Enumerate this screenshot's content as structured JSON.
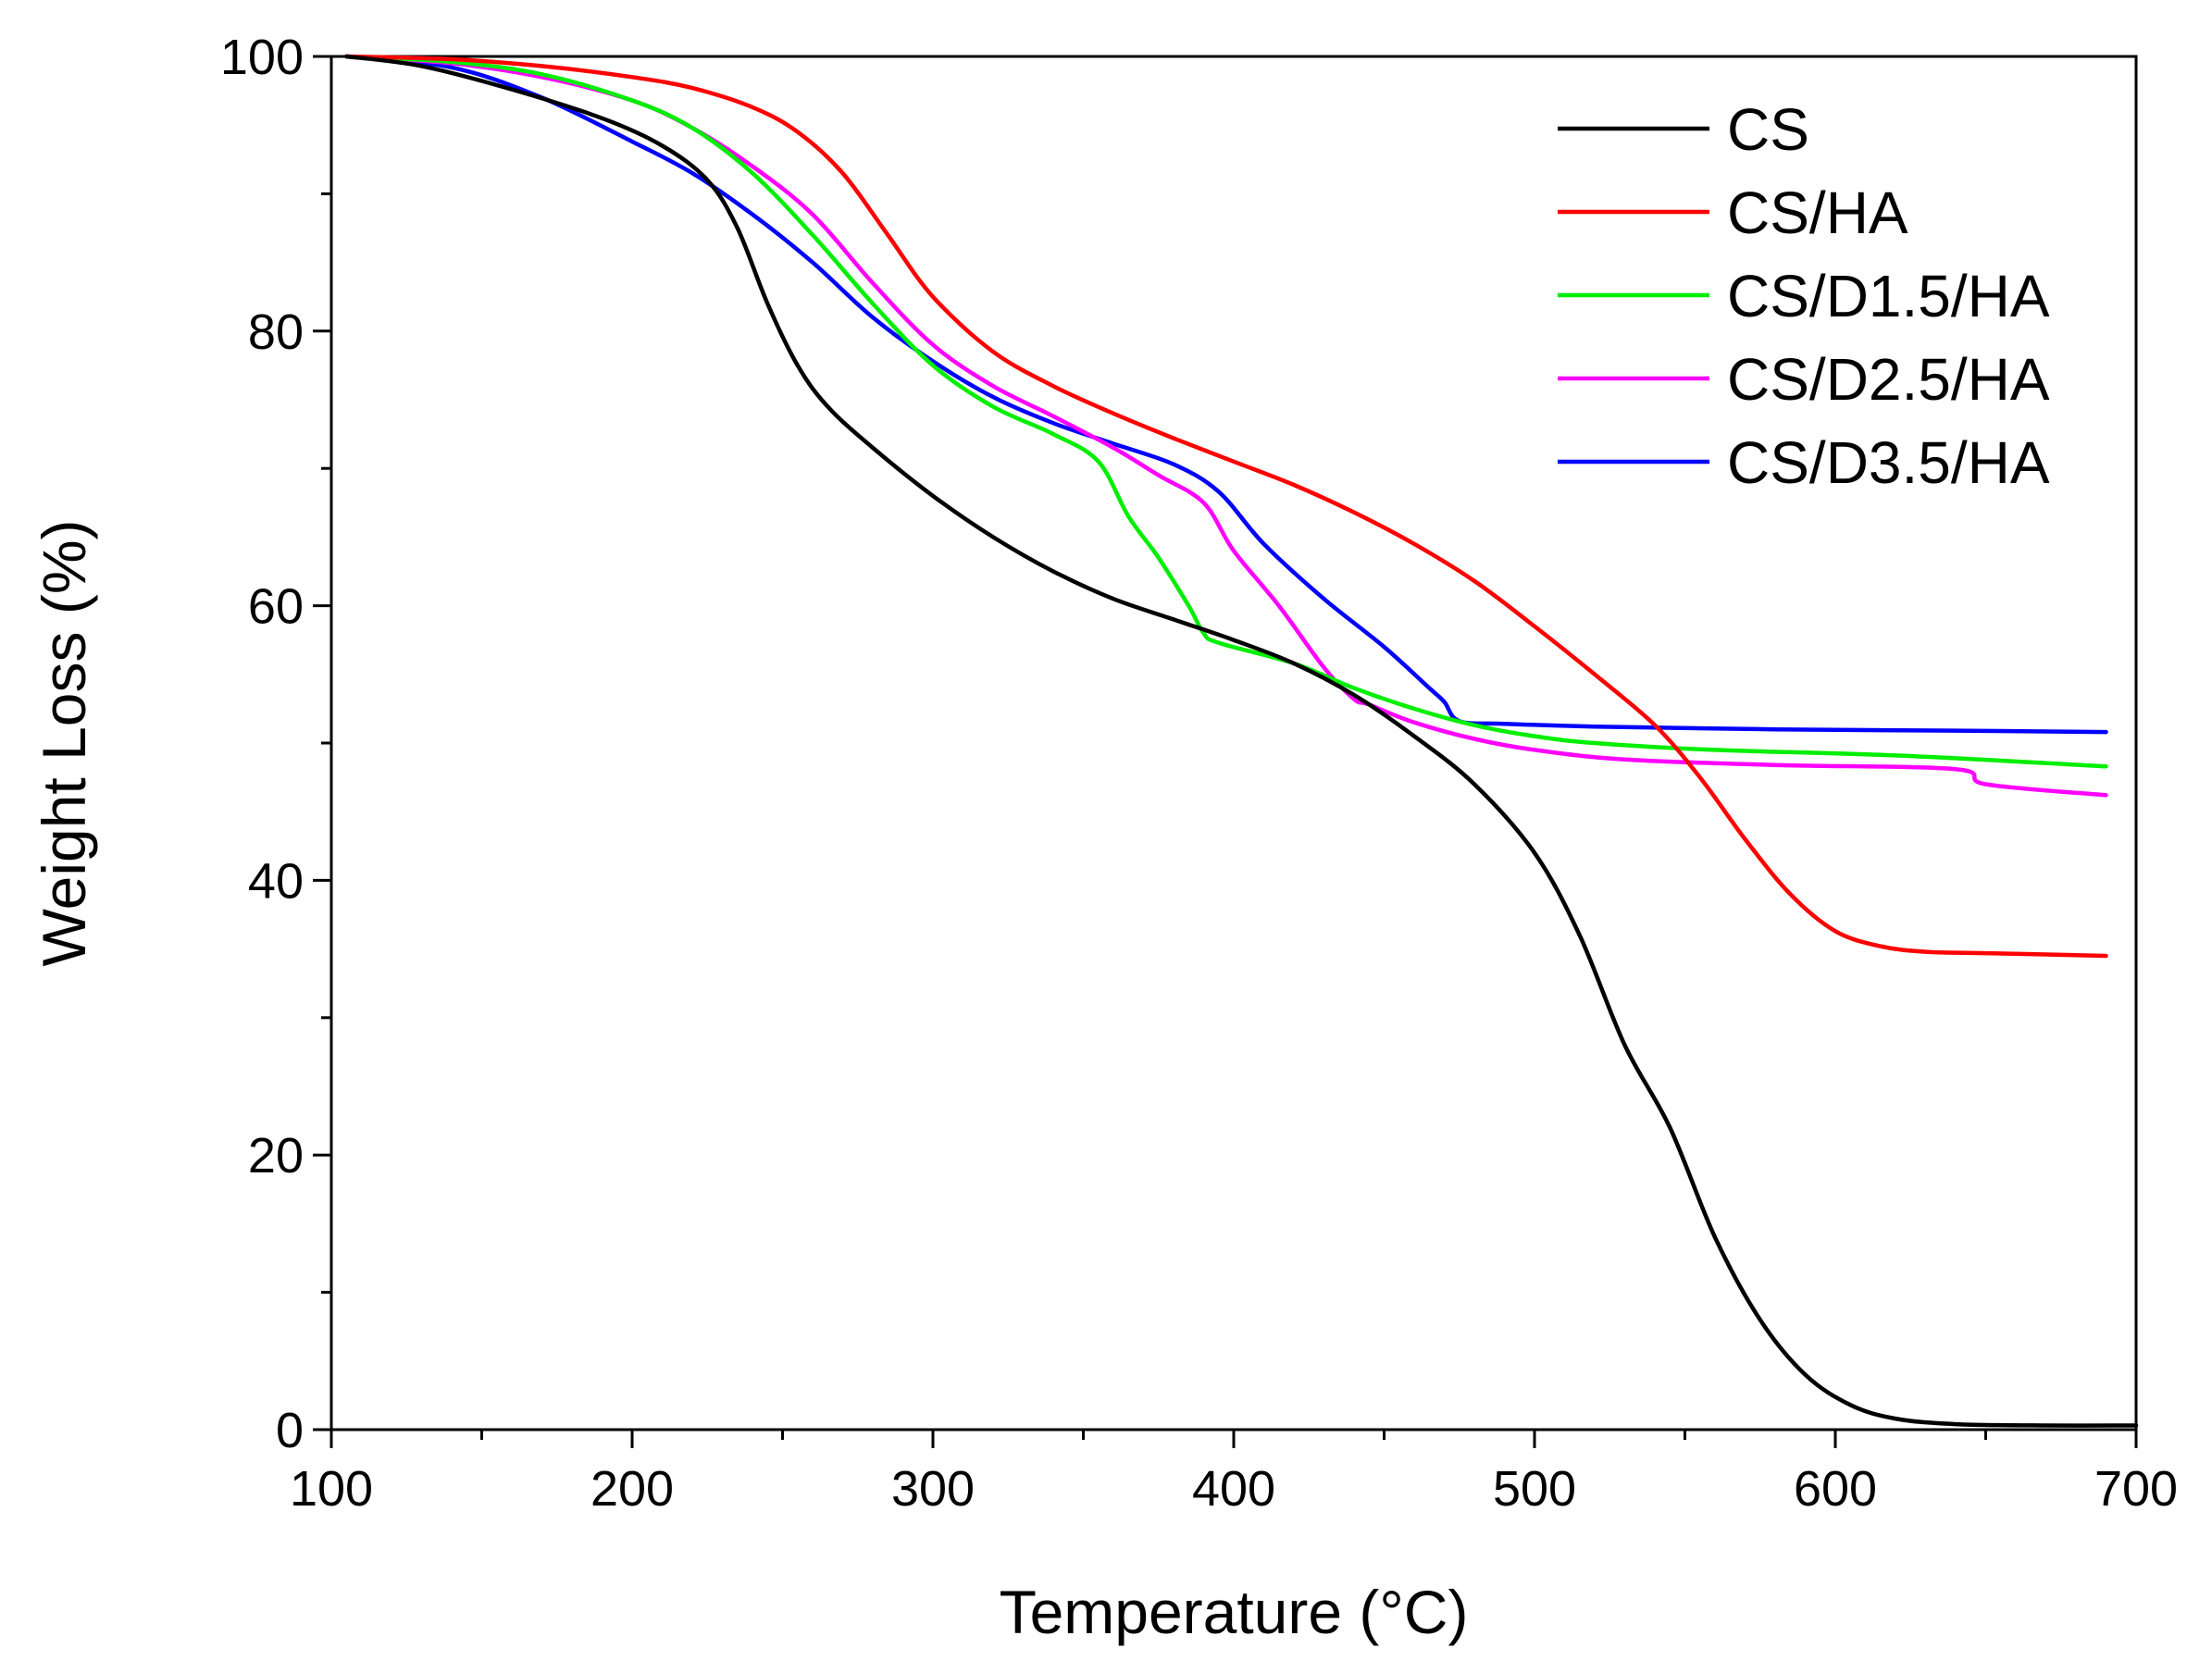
{
  "chart_data": {
    "type": "line",
    "xlabel": "Temperature (°C)",
    "ylabel": "Weight Loss (%)",
    "xlim": [
      100,
      700
    ],
    "ylim": [
      0,
      100
    ],
    "xticks": [
      100,
      200,
      300,
      400,
      500,
      600,
      700
    ],
    "yticks": [
      0,
      20,
      40,
      60,
      80,
      100
    ],
    "grid": false,
    "legend": "top-right",
    "series": [
      {
        "name": "CS",
        "color": "#000000",
        "x": [
          105,
          130,
          160,
          190,
          210,
          225,
          235,
          245,
          255,
          265,
          280,
          300,
          320,
          340,
          360,
          380,
          400,
          420,
          440,
          460,
          480,
          500,
          515,
          530,
          545,
          560,
          575,
          590,
          605,
          620,
          640,
          670,
          700
        ],
        "y": [
          100,
          99.3,
          97.6,
          95.5,
          93.5,
          91,
          87.5,
          82,
          77.5,
          74.5,
          71.5,
          68,
          65,
          62.5,
          60.5,
          59,
          57.5,
          55.8,
          53.5,
          50.5,
          47,
          42,
          36,
          28,
          22,
          14,
          8,
          4,
          1.8,
          0.8,
          0.4,
          0.3,
          0.3
        ]
      },
      {
        "name": "CS/HA",
        "color": "#ff0000",
        "x": [
          105,
          140,
          170,
          200,
          220,
          240,
          255,
          270,
          285,
          300,
          320,
          340,
          360,
          380,
          400,
          420,
          440,
          460,
          480,
          500,
          520,
          540,
          555,
          570,
          585,
          600,
          615,
          630,
          650,
          690
        ],
        "y": [
          100,
          99.8,
          99.3,
          98.5,
          97.7,
          96.3,
          94.5,
          91.5,
          87,
          82.5,
          78.5,
          76,
          74,
          72.2,
          70.5,
          68.8,
          66.8,
          64.5,
          61.8,
          58.5,
          55,
          51.3,
          47.5,
          43,
          39,
          36.3,
          35.2,
          34.8,
          34.7,
          34.5
        ]
      },
      {
        "name": "CS/D1.5/HA",
        "color": "#00ee00",
        "x": [
          105,
          140,
          170,
          200,
          220,
          240,
          260,
          280,
          300,
          320,
          340,
          355,
          365,
          375,
          385,
          390,
          395,
          420,
          440,
          460,
          480,
          500,
          520,
          560,
          620,
          690
        ],
        "y": [
          100,
          99.6,
          98.7,
          96.8,
          94.8,
          91.5,
          87,
          82,
          77.5,
          74.5,
          72.5,
          70.5,
          66.5,
          63.5,
          60,
          58,
          57.3,
          55.8,
          54,
          52.5,
          51.3,
          50.5,
          50,
          49.5,
          49.1,
          48.3
        ]
      },
      {
        "name": "CS/D2.5/HA",
        "color": "#ff00ff",
        "x": [
          105,
          140,
          170,
          200,
          220,
          240,
          260,
          280,
          300,
          320,
          340,
          360,
          375,
          390,
          400,
          415,
          430,
          440,
          445,
          460,
          480,
          500,
          530,
          580,
          640,
          650,
          690
        ],
        "y": [
          100,
          99.5,
          98.5,
          96.8,
          94.8,
          92,
          88.5,
          83.5,
          79,
          76,
          73.8,
          71.5,
          69.5,
          67.5,
          64,
          60,
          55.5,
          53.2,
          52.8,
          51.5,
          50.3,
          49.5,
          48.8,
          48.4,
          48.1,
          47,
          46.2
        ]
      },
      {
        "name": "CS/D3.5/HA",
        "color": "#0000ff",
        "x": [
          105,
          140,
          170,
          200,
          220,
          240,
          260,
          280,
          300,
          320,
          340,
          360,
          380,
          395,
          410,
          430,
          450,
          465,
          470,
          475,
          490,
          520,
          580,
          640,
          690
        ],
        "y": [
          100,
          99.2,
          97,
          93.8,
          91.5,
          88.5,
          85,
          81,
          77.8,
          75.2,
          73.3,
          71.8,
          70.3,
          68.3,
          64.5,
          60.5,
          57,
          54,
          53,
          51.6,
          51.4,
          51.2,
          51,
          50.9,
          50.8
        ]
      }
    ]
  }
}
